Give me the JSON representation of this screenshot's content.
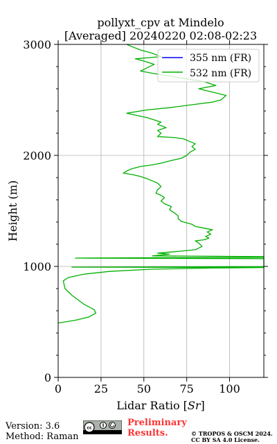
{
  "chart_data": {
    "type": "line",
    "title": [
      "pollyxt_cpv at Mindelo",
      "[Averaged] 20240220 02:08-02:23"
    ],
    "xlabel": "Lidar Ratio [$Sr$]",
    "xlabel_parts": {
      "prefix": "Lidar Ratio [",
      "unit": "Sr",
      "suffix": "]"
    },
    "ylabel": "Height (m)",
    "xlim": [
      0,
      120
    ],
    "ylim": [
      0,
      3000
    ],
    "x_ticks": [
      0,
      25,
      50,
      75,
      100
    ],
    "x_tick_labels": [
      "0",
      "25",
      "50",
      "75",
      "100"
    ],
    "y_ticks": [
      0,
      1000,
      2000,
      3000
    ],
    "y_tick_labels": [
      "0",
      "1000",
      "2000",
      "3000"
    ],
    "grid": true,
    "legend_position": "top-right",
    "series": [
      {
        "name": "355 nm (FR)",
        "color": "#0000ff",
        "points": []
      },
      {
        "name": "532 nm (FR)",
        "color": "#00b000",
        "points": [
          [
            0,
            490
          ],
          [
            10,
            515
          ],
          [
            18,
            545
          ],
          [
            22,
            580
          ],
          [
            21,
            610
          ],
          [
            15,
            660
          ],
          [
            8,
            740
          ],
          [
            4,
            800
          ],
          [
            3,
            870
          ],
          [
            6,
            900
          ],
          [
            15,
            930
          ],
          [
            30,
            955
          ],
          [
            55,
            975
          ],
          [
            90,
            985
          ],
          [
            120,
            990
          ],
          [
            120,
            990
          ],
          [
            8,
            993
          ],
          [
            120,
            998
          ],
          [
            120,
            1070
          ],
          [
            10,
            1075
          ],
          [
            120,
            1082
          ],
          [
            120,
            1088
          ],
          [
            55,
            1095
          ],
          [
            65,
            1110
          ],
          [
            58,
            1120
          ],
          [
            70,
            1135
          ],
          [
            80,
            1150
          ],
          [
            84,
            1180
          ],
          [
            82,
            1210
          ],
          [
            80,
            1230
          ],
          [
            85,
            1240
          ],
          [
            88,
            1255
          ],
          [
            86,
            1270
          ],
          [
            89,
            1290
          ],
          [
            87,
            1310
          ],
          [
            90,
            1330
          ],
          [
            85,
            1345
          ],
          [
            80,
            1360
          ],
          [
            78,
            1380
          ],
          [
            72,
            1405
          ],
          [
            70,
            1430
          ],
          [
            70,
            1455
          ],
          [
            68,
            1480
          ],
          [
            65,
            1510
          ],
          [
            66,
            1540
          ],
          [
            62,
            1565
          ],
          [
            60,
            1590
          ],
          [
            62,
            1620
          ],
          [
            60,
            1640
          ],
          [
            57,
            1660
          ],
          [
            58,
            1690
          ],
          [
            60,
            1720
          ],
          [
            58,
            1750
          ],
          [
            55,
            1770
          ],
          [
            52,
            1790
          ],
          [
            48,
            1810
          ],
          [
            44,
            1825
          ],
          [
            38,
            1840
          ],
          [
            40,
            1860
          ],
          [
            43,
            1880
          ],
          [
            48,
            1900
          ],
          [
            55,
            1915
          ],
          [
            60,
            1930
          ],
          [
            65,
            1950
          ],
          [
            72,
            1975
          ],
          [
            75,
            2000
          ],
          [
            77,
            2030
          ],
          [
            80,
            2055
          ],
          [
            78,
            2080
          ],
          [
            80,
            2105
          ],
          [
            76,
            2130
          ],
          [
            73,
            2150
          ],
          [
            68,
            2160
          ],
          [
            58,
            2170
          ],
          [
            60,
            2200
          ],
          [
            58,
            2225
          ],
          [
            63,
            2250
          ],
          [
            58,
            2280
          ],
          [
            60,
            2300
          ],
          [
            55,
            2325
          ],
          [
            52,
            2340
          ],
          [
            40,
            2380
          ],
          [
            52,
            2410
          ],
          [
            65,
            2430
          ],
          [
            80,
            2460
          ],
          [
            90,
            2480
          ],
          [
            95,
            2500
          ],
          [
            98,
            2540
          ],
          [
            90,
            2570
          ],
          [
            82,
            2600
          ],
          [
            92,
            2630
          ],
          [
            85,
            2665
          ],
          [
            75,
            2690
          ],
          [
            65,
            2715
          ],
          [
            55,
            2740
          ],
          [
            48,
            2760
          ],
          [
            52,
            2790
          ],
          [
            56,
            2820
          ],
          [
            50,
            2850
          ],
          [
            45,
            2870
          ],
          [
            60,
            2890
          ],
          [
            55,
            2920
          ],
          [
            48,
            2950
          ],
          [
            43,
            2980
          ],
          [
            40,
            3000
          ]
        ]
      }
    ]
  },
  "footer": {
    "version": "Version: 3.6",
    "method": "Method: Raman",
    "preliminary_line1": "Preliminary",
    "preliminary_line2": "Results.",
    "copyright_line1": "© TROPOS & OSCM 2024.",
    "copyright_line2": "CC BY SA 4.0 License.",
    "license_badge": "cc-by-sa-icon",
    "preliminary_color": "#ff3333"
  }
}
